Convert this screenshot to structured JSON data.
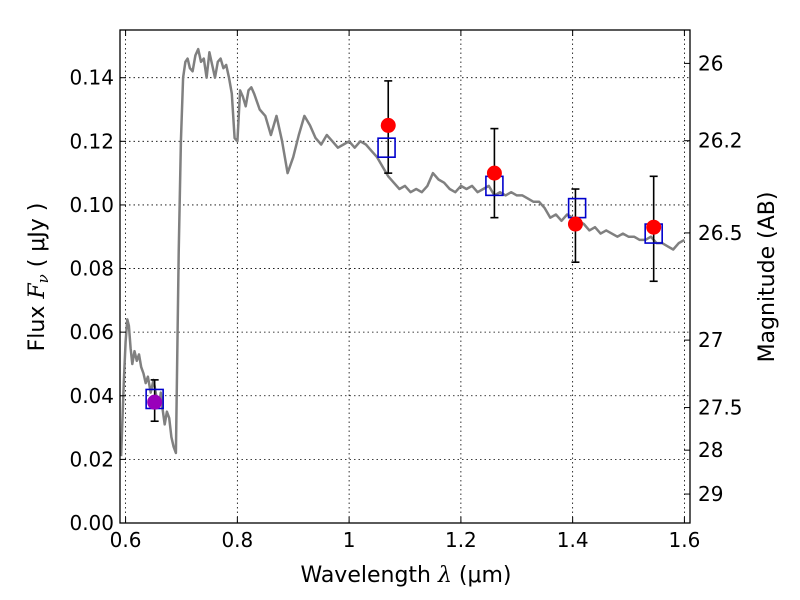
{
  "chart_data": {
    "type": "scatter",
    "title": "",
    "xlabel": {
      "prefix": "Wavelength  ",
      "symbol": "λ",
      "unit": " (μm)"
    },
    "ylabel": {
      "prefix": "Flux  ",
      "symbol": "F",
      "subscript": "ν",
      "unit": "  ( μJy )"
    },
    "y2label": "Magnitude (AB)",
    "xlim": [
      0.59,
      1.61
    ],
    "ylim": [
      0.0,
      0.155
    ],
    "grid": true,
    "x_ticks": [
      0.6,
      0.8,
      1.0,
      1.2,
      1.4,
      1.6
    ],
    "x_tick_labels": [
      "0.6",
      "0.8",
      "1",
      "1.2",
      "1.4",
      "1.6"
    ],
    "y_ticks": [
      0.0,
      0.02,
      0.04,
      0.06,
      0.08,
      0.1,
      0.12,
      0.14
    ],
    "y_tick_labels": [
      "0.00",
      "0.02",
      "0.04",
      "0.06",
      "0.08",
      "0.10",
      "0.12",
      "0.14"
    ],
    "y2_ticks": [
      {
        "label": "26",
        "flux": 0.1445
      },
      {
        "label": "26.2",
        "flux": 0.1202
      },
      {
        "label": "26.5",
        "flux": 0.0912
      },
      {
        "label": "27",
        "flux": 0.0575
      },
      {
        "label": "27.5",
        "flux": 0.0363
      },
      {
        "label": "28",
        "flux": 0.0229
      },
      {
        "label": "29",
        "flux": 0.0091
      }
    ],
    "series": [
      {
        "type": "line",
        "color": "#808080",
        "x": [
          0.592,
          0.597,
          0.6,
          0.603,
          0.606,
          0.609,
          0.612,
          0.616,
          0.62,
          0.624,
          0.628,
          0.632,
          0.636,
          0.64,
          0.645,
          0.65,
          0.655,
          0.66,
          0.663,
          0.666,
          0.67,
          0.674,
          0.678,
          0.682,
          0.686,
          0.69,
          0.695,
          0.699,
          0.703,
          0.707,
          0.711,
          0.715,
          0.72,
          0.725,
          0.73,
          0.735,
          0.74,
          0.745,
          0.75,
          0.755,
          0.76,
          0.765,
          0.77,
          0.775,
          0.78,
          0.785,
          0.79,
          0.795,
          0.8,
          0.805,
          0.81,
          0.815,
          0.82,
          0.825,
          0.83,
          0.84,
          0.85,
          0.86,
          0.87,
          0.88,
          0.89,
          0.9,
          0.91,
          0.92,
          0.93,
          0.94,
          0.95,
          0.96,
          0.97,
          0.98,
          0.99,
          1.0,
          1.01,
          1.02,
          1.03,
          1.04,
          1.05,
          1.06,
          1.07,
          1.08,
          1.09,
          1.1,
          1.11,
          1.12,
          1.13,
          1.14,
          1.15,
          1.16,
          1.17,
          1.18,
          1.19,
          1.2,
          1.21,
          1.22,
          1.23,
          1.24,
          1.25,
          1.26,
          1.27,
          1.28,
          1.29,
          1.3,
          1.31,
          1.32,
          1.33,
          1.34,
          1.35,
          1.36,
          1.37,
          1.38,
          1.39,
          1.4,
          1.41,
          1.42,
          1.43,
          1.44,
          1.45,
          1.46,
          1.47,
          1.48,
          1.49,
          1.5,
          1.51,
          1.52,
          1.53,
          1.54,
          1.55,
          1.56,
          1.57,
          1.58,
          1.59,
          1.6
        ],
        "y": [
          0.021,
          0.045,
          0.057,
          0.064,
          0.062,
          0.055,
          0.05,
          0.054,
          0.051,
          0.053,
          0.049,
          0.047,
          0.044,
          0.046,
          0.041,
          0.045,
          0.04,
          0.037,
          0.041,
          0.036,
          0.031,
          0.035,
          0.033,
          0.027,
          0.024,
          0.022,
          0.085,
          0.12,
          0.14,
          0.145,
          0.146,
          0.143,
          0.142,
          0.147,
          0.149,
          0.145,
          0.146,
          0.14,
          0.148,
          0.144,
          0.14,
          0.145,
          0.146,
          0.143,
          0.144,
          0.14,
          0.135,
          0.121,
          0.12,
          0.136,
          0.134,
          0.131,
          0.136,
          0.137,
          0.135,
          0.13,
          0.128,
          0.122,
          0.128,
          0.12,
          0.11,
          0.115,
          0.122,
          0.128,
          0.125,
          0.121,
          0.119,
          0.122,
          0.12,
          0.118,
          0.119,
          0.12,
          0.118,
          0.12,
          0.119,
          0.117,
          0.115,
          0.112,
          0.109,
          0.107,
          0.105,
          0.106,
          0.104,
          0.105,
          0.104,
          0.106,
          0.11,
          0.108,
          0.107,
          0.105,
          0.104,
          0.106,
          0.105,
          0.106,
          0.104,
          0.105,
          0.106,
          0.103,
          0.104,
          0.103,
          0.104,
          0.103,
          0.103,
          0.102,
          0.101,
          0.101,
          0.099,
          0.096,
          0.097,
          0.095,
          0.097,
          0.096,
          0.095,
          0.094,
          0.092,
          0.093,
          0.091,
          0.092,
          0.091,
          0.09,
          0.091,
          0.09,
          0.09,
          0.089,
          0.089,
          0.09,
          0.088,
          0.088,
          0.087,
          0.086,
          0.088,
          0.089
        ]
      },
      {
        "type": "errorbar",
        "color": "#000000",
        "points": [
          {
            "x": 0.652,
            "lo": 0.032,
            "hi": 0.045
          },
          {
            "x": 1.07,
            "lo": 0.11,
            "hi": 0.139
          },
          {
            "x": 1.26,
            "lo": 0.096,
            "hi": 0.124
          },
          {
            "x": 1.405,
            "lo": 0.082,
            "hi": 0.105
          },
          {
            "x": 1.545,
            "lo": 0.076,
            "hi": 0.109
          }
        ]
      },
      {
        "type": "squares",
        "color": "#0000cc",
        "x": [
          0.652,
          1.067,
          1.26,
          1.408,
          1.545
        ],
        "y": [
          0.039,
          0.118,
          0.106,
          0.099,
          0.091
        ]
      },
      {
        "type": "points",
        "color": "#ff0000",
        "x": [
          1.07,
          1.26,
          1.405,
          1.545
        ],
        "y": [
          0.125,
          0.11,
          0.094,
          0.093
        ]
      },
      {
        "type": "points",
        "color": "#9900bb",
        "x": [
          0.652
        ],
        "y": [
          0.038
        ]
      }
    ]
  }
}
